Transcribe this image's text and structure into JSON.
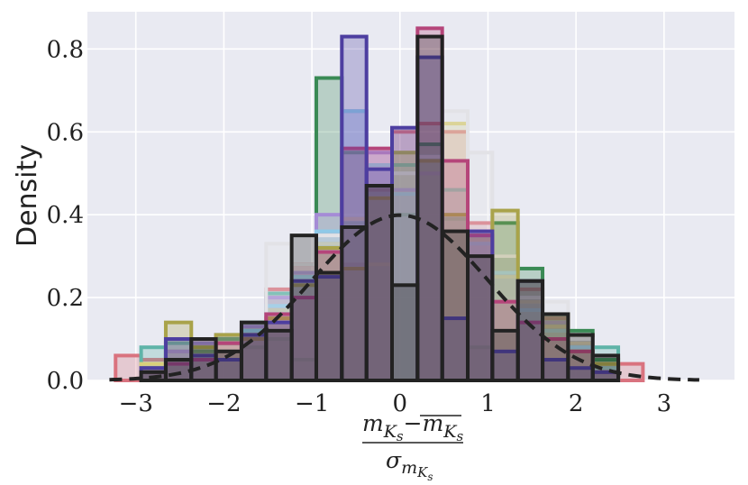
{
  "chart_data": {
    "type": "histogram",
    "ylabel": "Density",
    "xlabel": {
      "numerator_left": "m",
      "numerator_left_sub": "K",
      "numerator_left_subsub": "s",
      "minus": "−",
      "numerator_right": "m",
      "numerator_right_sub": "K",
      "numerator_right_subsub": "s",
      "denominator": "σ",
      "denominator_sub": "m",
      "denominator_subsub": "K",
      "denominator_subsubsub": "s"
    },
    "xlim": [
      -3.55,
      3.8
    ],
    "ylim": [
      0,
      0.89
    ],
    "xticks": [
      -3,
      -2,
      -1,
      0,
      1,
      2,
      3
    ],
    "xtick_labels": [
      "−3",
      "−2",
      "−1",
      "0",
      "1",
      "2",
      "3"
    ],
    "yticks": [
      0.0,
      0.2,
      0.4,
      0.6,
      0.8
    ],
    "ytick_labels": [
      "0.0",
      "0.2",
      "0.4",
      "0.6",
      "0.8"
    ],
    "grid": true,
    "background": "#e9eaf2",
    "bin_edges": [
      -3.23,
      -2.94,
      -2.66,
      -2.37,
      -2.09,
      -1.8,
      -1.52,
      -1.23,
      -0.95,
      -0.66,
      -0.38,
      -0.09,
      0.2,
      0.48,
      0.77,
      1.05,
      1.34,
      1.62,
      1.91,
      2.19,
      2.48,
      2.76
    ],
    "reference_curve": {
      "type": "normal_pdf",
      "mean": 0,
      "std": 1,
      "color": "#222222",
      "style": "dashed"
    },
    "series": [
      {
        "color": "#d9737f",
        "values": [
          0.06,
          0.05,
          0.07,
          0.09,
          0.1,
          0.14,
          0.22,
          0.28,
          0.32,
          0.28,
          0.46,
          0.6,
          0.62,
          0.6,
          0.38,
          0.3,
          0.22,
          0.15,
          0.11,
          0.06,
          0.04
        ]
      },
      {
        "color": "#5fb4a8",
        "values": [
          0.0,
          0.08,
          0.09,
          0.08,
          0.11,
          0.14,
          0.21,
          0.25,
          0.33,
          0.38,
          0.44,
          0.52,
          0.53,
          0.46,
          0.35,
          0.3,
          0.2,
          0.14,
          0.09,
          0.08,
          0.0
        ]
      },
      {
        "color": "#3a8a55",
        "values": [
          0.0,
          0.03,
          0.05,
          0.07,
          0.1,
          0.08,
          0.1,
          0.05,
          0.73,
          0.55,
          0.47,
          0.4,
          0.57,
          0.39,
          0.08,
          0.38,
          0.27,
          0.16,
          0.12,
          0.05,
          0.0
        ]
      },
      {
        "color": "#d9cf7a",
        "values": [
          0.0,
          0.04,
          0.05,
          0.06,
          0.09,
          0.12,
          0.17,
          0.23,
          0.33,
          0.39,
          0.28,
          0.55,
          0.53,
          0.62,
          0.34,
          0.25,
          0.19,
          0.13,
          0.09,
          0.04,
          0.0
        ]
      },
      {
        "color": "#a58cd6",
        "values": [
          0.0,
          0.03,
          0.07,
          0.09,
          0.11,
          0.13,
          0.2,
          0.26,
          0.4,
          0.65,
          0.55,
          0.46,
          0.5,
          0.4,
          0.36,
          0.26,
          0.2,
          0.14,
          0.1,
          0.03,
          0.0
        ]
      },
      {
        "color": "#8fc9e8",
        "values": [
          0.0,
          0.03,
          0.05,
          0.06,
          0.08,
          0.12,
          0.18,
          0.25,
          0.36,
          0.65,
          0.52,
          0.45,
          0.54,
          0.4,
          0.33,
          0.26,
          0.17,
          0.12,
          0.08,
          0.03,
          0.0
        ]
      },
      {
        "color": "#e2e2e6",
        "values": [
          0.0,
          0.02,
          0.04,
          0.06,
          0.08,
          0.11,
          0.33,
          0.28,
          0.35,
          0.37,
          0.44,
          0.5,
          0.54,
          0.65,
          0.55,
          0.3,
          0.2,
          0.19,
          0.1,
          0.02,
          0.0
        ]
      },
      {
        "color": "#a9a34a",
        "values": [
          0.0,
          0.03,
          0.14,
          0.08,
          0.11,
          0.1,
          0.15,
          0.23,
          0.32,
          0.27,
          0.44,
          0.55,
          0.53,
          0.4,
          0.35,
          0.41,
          0.24,
          0.16,
          0.07,
          0.04,
          0.0
        ]
      },
      {
        "color": "#b5457a",
        "values": [
          0.0,
          0.02,
          0.04,
          0.05,
          0.09,
          0.11,
          0.16,
          0.2,
          0.31,
          0.56,
          0.56,
          0.0,
          0.85,
          0.53,
          0.35,
          0.19,
          0.14,
          0.1,
          0.07,
          0.02,
          0.0
        ]
      },
      {
        "color": "#4d3ea0",
        "values": [
          0.0,
          0.03,
          0.1,
          0.06,
          0.05,
          0.11,
          0.14,
          0.24,
          0.25,
          0.83,
          0.51,
          0.61,
          0.78,
          0.15,
          0.36,
          0.07,
          0.24,
          0.05,
          0.03,
          0.02,
          0.0
        ]
      },
      {
        "color": "#222222",
        "values": [
          0.0,
          0.02,
          0.05,
          0.1,
          0.07,
          0.14,
          0.12,
          0.35,
          0.26,
          0.37,
          0.47,
          0.23,
          0.83,
          0.36,
          0.3,
          0.12,
          0.24,
          0.16,
          0.11,
          0.06,
          0.0
        ]
      }
    ]
  }
}
